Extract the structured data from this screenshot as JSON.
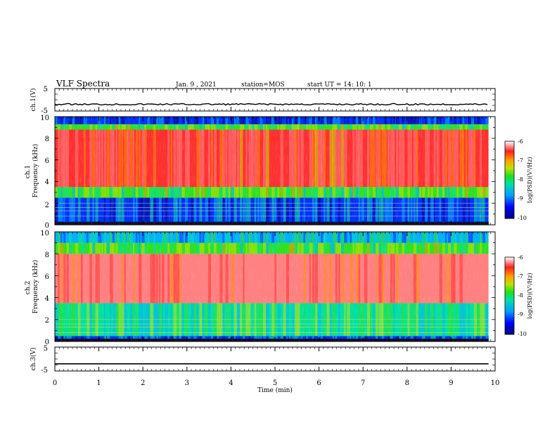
{
  "header": {
    "title": "VLF Spectra",
    "date": "Jan. 9 , 2021",
    "station": "station=MOS",
    "start_ut": "start UT =  14: 10: 1"
  },
  "colors": {
    "spectrum_low": "#00008b",
    "spectrum_mid": "#00e060",
    "spectrum_high": "#ff2020",
    "trace": "#000000"
  },
  "chart_data": [
    {
      "type": "line",
      "name": "ch1-waveform",
      "ylabel": "ch.1(V)",
      "ylim": [
        -5,
        5
      ],
      "yticks": [
        "5",
        "-5"
      ],
      "baseline_value": -2
    },
    {
      "type": "heatmap",
      "name": "ch1-spectrogram",
      "ylabel": "ch.1\nFrequency (kHz)",
      "ylim": [
        0,
        10
      ],
      "yticks": [
        "0",
        "2",
        "4",
        "6",
        "8",
        "10"
      ],
      "colorbar": {
        "label": "log(PSD)(V²/Hz)",
        "ticks": [
          "-6",
          "-7",
          "-8",
          "-9",
          "-10"
        ],
        "range": [
          -10,
          -6
        ]
      },
      "bands": [
        {
          "from": 0,
          "to": 0.3,
          "level": -10
        },
        {
          "from": 0.3,
          "to": 2.5,
          "level": -9
        },
        {
          "from": 2.5,
          "to": 3.5,
          "level": -8
        },
        {
          "from": 3.5,
          "to": 8.8,
          "level": -6.6
        },
        {
          "from": 8.8,
          "to": 9.3,
          "level": -8
        },
        {
          "from": 9.3,
          "to": 10,
          "level": -9.5
        }
      ]
    },
    {
      "type": "heatmap",
      "name": "ch2-spectrogram",
      "ylabel": "ch.2\nFrequency (kHz)",
      "ylim": [
        0,
        10
      ],
      "yticks": [
        "0",
        "2",
        "4",
        "6",
        "8",
        "10"
      ],
      "colorbar": {
        "label": "log(PSD)(V²/Hz)",
        "ticks": [
          "-6",
          "-7",
          "-8",
          "-9",
          "-10"
        ],
        "range": [
          -10,
          -6
        ]
      },
      "bands": [
        {
          "from": 0,
          "to": 0.5,
          "level": -9
        },
        {
          "from": 0.5,
          "to": 3.5,
          "level": -8.2
        },
        {
          "from": 3.5,
          "to": 8,
          "level": -6.3
        },
        {
          "from": 8,
          "to": 9,
          "level": -8
        },
        {
          "from": 9,
          "to": 10,
          "level": -8.6
        }
      ]
    },
    {
      "type": "line",
      "name": "ch3-waveform",
      "ylabel": "ch.3(V)",
      "ylim": [
        -5,
        5
      ],
      "yticks": [
        "5",
        "-5"
      ],
      "baseline_value": -2
    }
  ],
  "xaxis": {
    "label": "Time (min)",
    "xlim": [
      0,
      10
    ],
    "ticks": [
      "0",
      "1",
      "2",
      "3",
      "4",
      "5",
      "6",
      "7",
      "8",
      "9",
      "10"
    ],
    "data_end": 9.85
  }
}
